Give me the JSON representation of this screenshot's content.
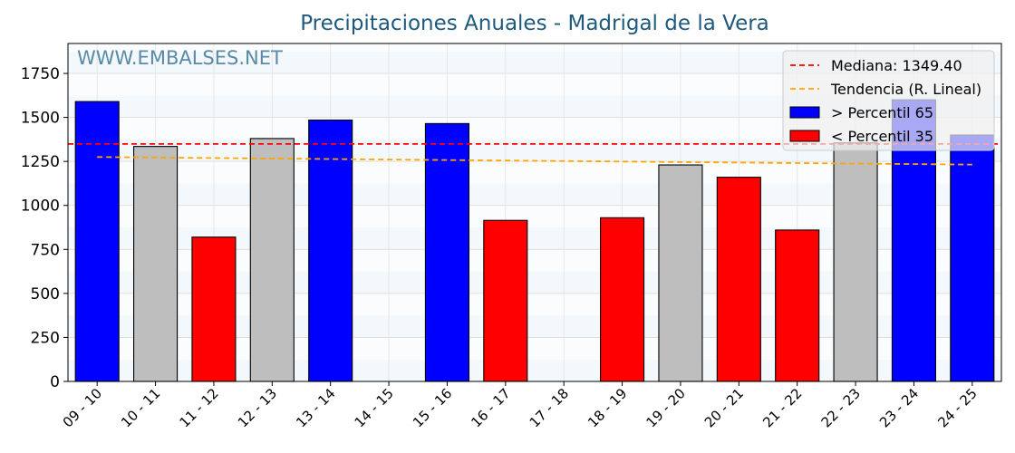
{
  "chart_data": {
    "type": "bar",
    "title": "Precipitaciones Anuales - Madrigal de la Vera",
    "watermark": "WWW.EMBALSES.NET",
    "xlabel": "",
    "ylabel": "",
    "ylim": [
      0,
      1920
    ],
    "yticks": [
      0,
      250,
      500,
      750,
      1000,
      1250,
      1500,
      1750
    ],
    "categories": [
      "09 - 10",
      "10 - 11",
      "11 - 12",
      "12 - 13",
      "13 - 14",
      "14 - 15",
      "15 - 16",
      "16 - 17",
      "17 - 18",
      "18 - 19",
      "19 - 20",
      "20 - 21",
      "21 - 22",
      "22 - 23",
      "23 - 24",
      "24 - 25"
    ],
    "values": [
      1590,
      1335,
      820,
      1380,
      1485,
      null,
      1465,
      915,
      null,
      930,
      1230,
      1160,
      860,
      1355,
      1600,
      1400
    ],
    "bar_colors": [
      "#0000ff",
      "#bebebe",
      "#ff0000",
      "#bebebe",
      "#0000ff",
      null,
      "#0000ff",
      "#ff0000",
      null,
      "#ff0000",
      "#bebebe",
      "#ff0000",
      "#ff0000",
      "#bebebe",
      "#0000ff",
      "#0000ff"
    ],
    "median": {
      "label": "Mediana: 1349.40",
      "value": 1349.4,
      "color": "#ff0000"
    },
    "trend": {
      "label": "Tendencia (R. Lineal)",
      "start": 1275,
      "end": 1232,
      "color": "#ffa500"
    },
    "legend": {
      "placement": "top-right",
      "entries": [
        {
          "label": "Mediana: 1349.40",
          "kind": "line",
          "color": "#ff0000"
        },
        {
          "label": "Tendencia (R. Lineal)",
          "kind": "line",
          "color": "#ffa500"
        },
        {
          "label": " > Percentil 65",
          "kind": "patch",
          "color": "#0000ff"
        },
        {
          "label": " < Percentil 35",
          "kind": "patch",
          "color": "#ff0000"
        }
      ]
    },
    "grid": true
  }
}
